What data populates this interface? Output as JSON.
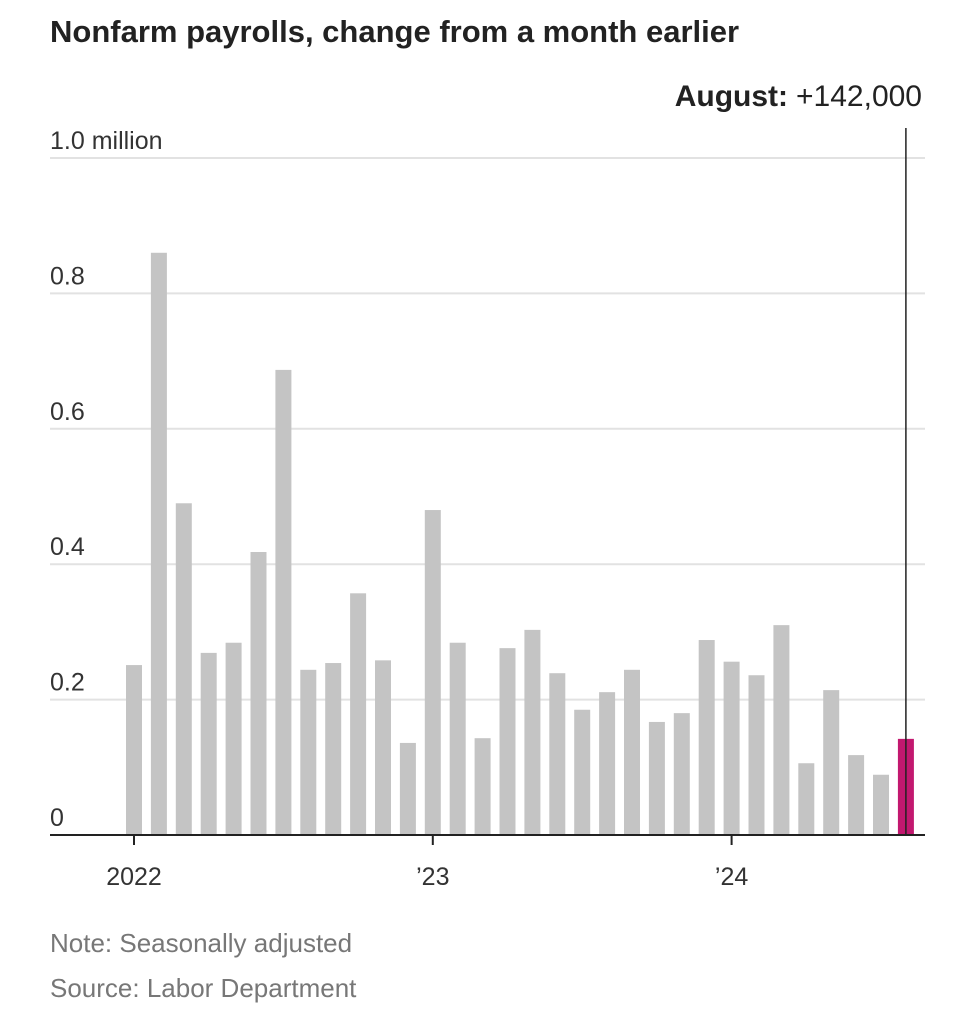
{
  "chart_data": {
    "type": "bar",
    "title": "Nonfarm payrolls, change from a month earlier",
    "ylabel": "",
    "xlabel": "",
    "ylim": [
      0,
      1.0
    ],
    "unit": "million",
    "grid": true,
    "yticks": [
      {
        "value": 0,
        "label": "0"
      },
      {
        "value": 0.2,
        "label": "0.2"
      },
      {
        "value": 0.4,
        "label": "0.4"
      },
      {
        "value": 0.6,
        "label": "0.6"
      },
      {
        "value": 0.8,
        "label": "0.8"
      },
      {
        "value": 1.0,
        "label": "1.0 million"
      }
    ],
    "xticks": [
      {
        "index": 0,
        "label": "2022"
      },
      {
        "index": 12,
        "label": "’23"
      },
      {
        "index": 24,
        "label": "’24"
      }
    ],
    "categories": [
      "Jan 2022",
      "Feb 2022",
      "Mar 2022",
      "Apr 2022",
      "May 2022",
      "Jun 2022",
      "Jul 2022",
      "Aug 2022",
      "Sep 2022",
      "Oct 2022",
      "Nov 2022",
      "Dec 2022",
      "Jan 2023",
      "Feb 2023",
      "Mar 2023",
      "Apr 2023",
      "May 2023",
      "Jun 2023",
      "Jul 2023",
      "Aug 2023",
      "Sep 2023",
      "Oct 2023",
      "Nov 2023",
      "Dec 2023",
      "Jan 2024",
      "Feb 2024",
      "Mar 2024",
      "Apr 2024",
      "May 2024",
      "Jun 2024",
      "Jul 2024",
      "Aug 2024"
    ],
    "values": [
      0.251,
      0.86,
      0.49,
      0.269,
      0.284,
      0.418,
      0.687,
      0.244,
      0.254,
      0.357,
      0.258,
      0.136,
      0.48,
      0.284,
      0.143,
      0.276,
      0.303,
      0.239,
      0.185,
      0.211,
      0.244,
      0.167,
      0.18,
      0.288,
      0.256,
      0.236,
      0.31,
      0.106,
      0.214,
      0.118,
      0.089,
      0.142
    ],
    "highlight_index": 31,
    "annotation": {
      "label": "August:",
      "value": "+142,000"
    },
    "colors": {
      "bar": "#c4c4c4",
      "highlight": "#c2186f",
      "grid": "#e2e2e2",
      "axis": "#222222"
    }
  },
  "notes": {
    "note": "Note: Seasonally adjusted",
    "source": "Source: Labor Department"
  }
}
